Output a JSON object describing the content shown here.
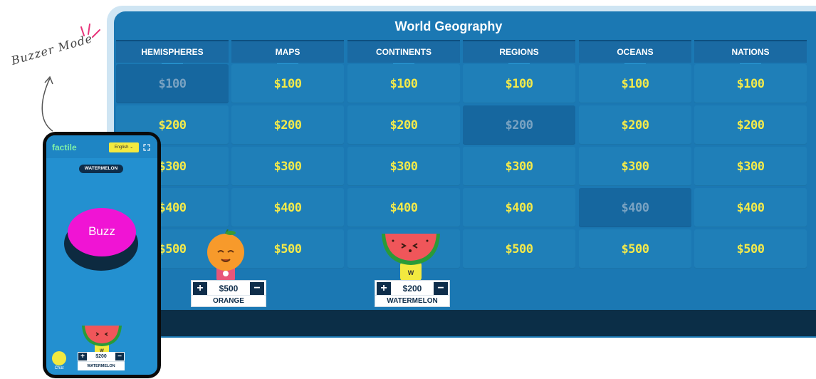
{
  "annotation": {
    "text": "Buzzer Mode"
  },
  "board": {
    "title": "World Geography",
    "categories": [
      "HEMISPHERES",
      "MAPS",
      "CONTINENTS",
      "REGIONS",
      "OCEANS",
      "NATIONS"
    ],
    "values": [
      "$100",
      "$200",
      "$300",
      "$400",
      "$500"
    ],
    "used_cells": [
      {
        "category": "HEMISPHERES",
        "value": "$100"
      },
      {
        "category": "REGIONS",
        "value": "$200"
      },
      {
        "category": "OCEANS",
        "value": "$400"
      }
    ]
  },
  "players": [
    {
      "name": "ORANGE",
      "score": "$500"
    },
    {
      "name": "WATERMELON",
      "score": "$200"
    }
  ],
  "phone": {
    "logo": "factile",
    "language": "English ⌄",
    "player_name": "WATERMELON",
    "buzz_label": "Buzz",
    "chat_label": "Chat",
    "score": "$200",
    "score_name": "WATERMELON"
  },
  "colors": {
    "board": "#1b78b3",
    "cell": "#1f7fb8",
    "cell_used": "#16679f",
    "value_text": "#f4ea4a",
    "buzz": "#f014d4",
    "footer": "#0b2e47"
  }
}
